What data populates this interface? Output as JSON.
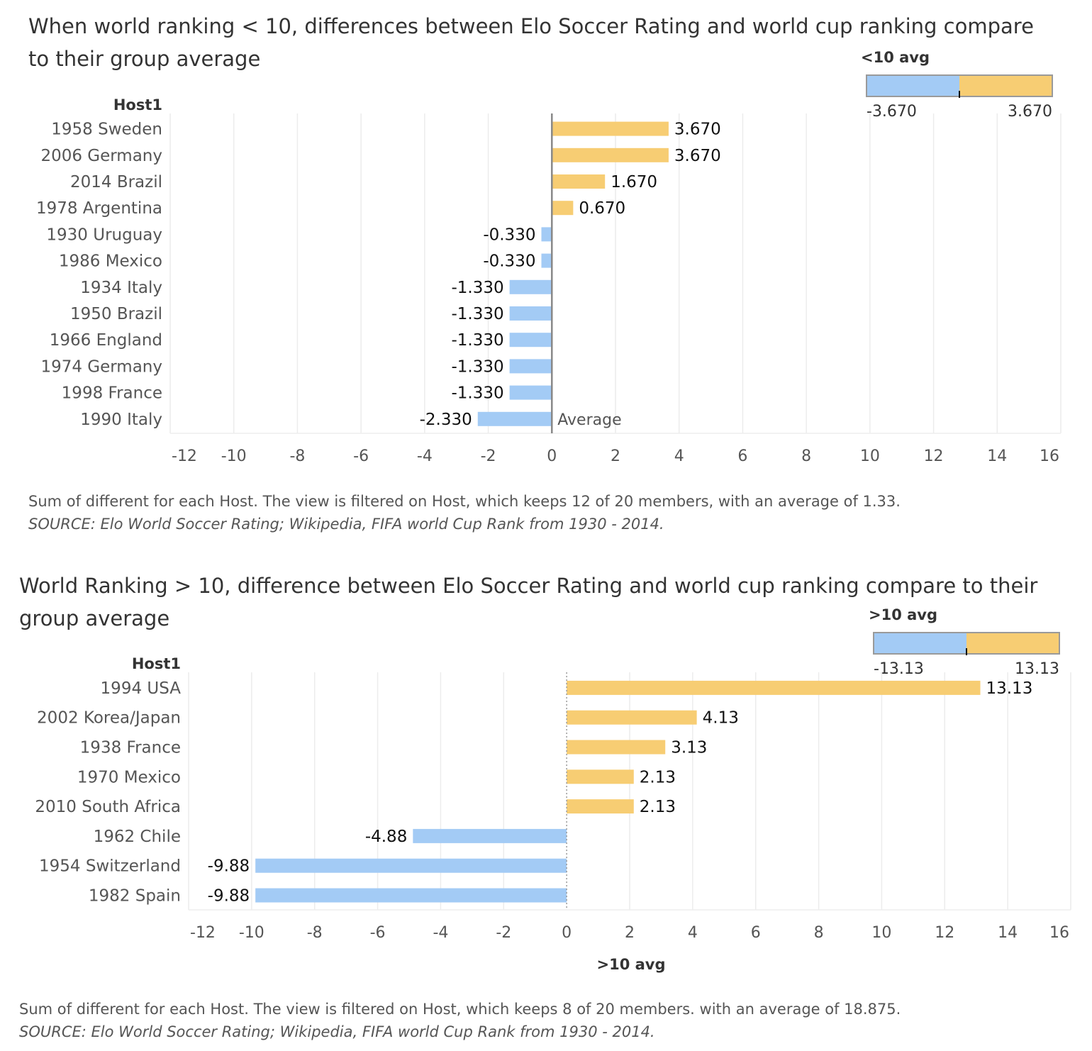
{
  "colors": {
    "positive": "#f7cd73",
    "negative": "#a3cbf5",
    "grid": "#ececec",
    "text": "#333333"
  },
  "chart_data": [
    {
      "type": "bar",
      "orientation": "horizontal",
      "title_line1": "When world ranking < 10,  differences between Elo Soccer Rating and world cup ranking compare",
      "title_line2": "to their group average",
      "row_header": "Host1",
      "xlim": [
        -12,
        16
      ],
      "x_ticks": [
        -12,
        -10,
        -8,
        -6,
        -4,
        -2,
        0,
        2,
        4,
        6,
        8,
        10,
        12,
        14,
        16
      ],
      "categories": [
        "1958 Sweden",
        "2006 Germany",
        "2014 Brazil",
        "1978 Argentina",
        "1930 Uruguay",
        "1986 Mexico",
        "1934 Italy",
        "1950 Brazil",
        "1966 England",
        "1974 Germany",
        "1998 France",
        "1990 Italy"
      ],
      "values": [
        3.67,
        3.67,
        1.67,
        0.67,
        -0.33,
        -0.33,
        -1.33,
        -1.33,
        -1.33,
        -1.33,
        -1.33,
        -2.33
      ],
      "value_labels": [
        "3.670",
        "3.670",
        "1.670",
        "0.670",
        "-0.330",
        "-0.330",
        "-1.330",
        "-1.330",
        "-1.330",
        "-1.330",
        "-1.330",
        "-2.330"
      ],
      "reference_line": {
        "value": 0,
        "label": "Average",
        "style": "solid"
      },
      "legend": {
        "title": "<10 avg",
        "min_label": "-3.670",
        "max_label": "3.670",
        "placement": "top-right"
      },
      "x_axis_title": "",
      "footnote": "Sum of different for each Host. The view is filtered on Host, which keeps 12 of 20 members, with an average of 1.33.",
      "source": "SOURCE: Elo World Soccer Rating; Wikipedia, FIFA world Cup Rank from 1930 - 2014."
    },
    {
      "type": "bar",
      "orientation": "horizontal",
      "title_line1": "World Ranking > 10, difference between Elo Soccer Rating and world cup ranking compare to their",
      "title_line2": "group average",
      "row_header": "Host1",
      "xlim": [
        -12,
        16
      ],
      "x_ticks": [
        -12,
        -10,
        -8,
        -6,
        -4,
        -2,
        0,
        2,
        4,
        6,
        8,
        10,
        12,
        14,
        16
      ],
      "categories": [
        "1994 USA",
        "2002 Korea/Japan",
        "1938 France",
        "1970 Mexico",
        "2010 South Africa",
        "1962 Chile",
        "1954 Switzerland",
        "1982 Spain"
      ],
      "values": [
        13.13,
        4.13,
        3.13,
        2.13,
        2.13,
        -4.88,
        -9.88,
        -9.88
      ],
      "value_labels": [
        "13.13",
        "4.13",
        "3.13",
        "2.13",
        "2.13",
        "-4.88",
        "-9.88",
        "-9.88"
      ],
      "reference_line": {
        "value": 0,
        "label": "",
        "style": "dotted"
      },
      "legend": {
        "title": ">10 avg",
        "min_label": "-13.13",
        "max_label": "13.13",
        "placement": "top-right"
      },
      "x_axis_title": ">10 avg",
      "footnote": "Sum of different for each Host. The view is filtered on Host, which keeps 8 of 20 members. with an average of 18.875.",
      "source": "SOURCE: Elo World Soccer Rating; Wikipedia, FIFA world Cup Rank from 1930 - 2014."
    }
  ]
}
